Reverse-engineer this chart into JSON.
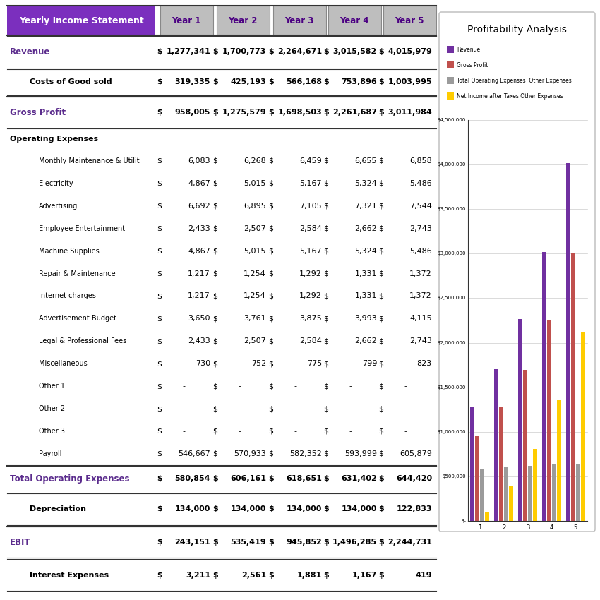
{
  "title_header": "Yearly Income Statement",
  "years": [
    "Year 1",
    "Year 2",
    "Year 3",
    "Year 4",
    "Year 5"
  ],
  "header_bg": "#7B2FBE",
  "header_text_color": "#FFFFFF",
  "year_bg": "#BEBEBE",
  "year_text_color": "#4B0082",
  "rows": [
    {
      "label": "Revenue",
      "style": "blue_bold",
      "values": [
        "1,277,341",
        "1,700,773",
        "2,264,671",
        "3,015,582",
        "4,015,979"
      ],
      "dollar": true,
      "line_above": true,
      "line_below": false
    },
    {
      "label": "Costs of Good sold",
      "style": "normal_bold",
      "values": [
        "319,335",
        "425,193",
        "566,168",
        "753,896",
        "1,003,995"
      ],
      "dollar": true,
      "line_above": true,
      "line_below": true
    },
    {
      "label": "Gross Profit",
      "style": "blue_bold",
      "values": [
        "958,005",
        "1,275,579",
        "1,698,503",
        "2,261,687",
        "3,011,984"
      ],
      "dollar": true,
      "line_above": true,
      "line_below": true
    },
    {
      "label": "Operating Expenses",
      "style": "section_header",
      "values": [
        "",
        "",
        "",
        "",
        ""
      ],
      "dollar": false,
      "line_above": false,
      "line_below": false
    },
    {
      "label": "Monthly Maintenance & Utilit",
      "style": "indent",
      "values": [
        "6,083",
        "6,268",
        "6,459",
        "6,655",
        "6,858"
      ],
      "dollar": true,
      "line_above": false,
      "line_below": false
    },
    {
      "label": "Electricity",
      "style": "indent",
      "values": [
        "4,867",
        "5,015",
        "5,167",
        "5,324",
        "5,486"
      ],
      "dollar": true,
      "line_above": false,
      "line_below": false
    },
    {
      "label": "Advertising",
      "style": "indent",
      "values": [
        "6,692",
        "6,895",
        "7,105",
        "7,321",
        "7,544"
      ],
      "dollar": true,
      "line_above": false,
      "line_below": false
    },
    {
      "label": "Employee Entertainment",
      "style": "indent",
      "values": [
        "2,433",
        "2,507",
        "2,584",
        "2,662",
        "2,743"
      ],
      "dollar": true,
      "line_above": false,
      "line_below": false
    },
    {
      "label": "Machine Supplies",
      "style": "indent",
      "values": [
        "4,867",
        "5,015",
        "5,167",
        "5,324",
        "5,486"
      ],
      "dollar": true,
      "line_above": false,
      "line_below": false
    },
    {
      "label": "Repair & Maintenance",
      "style": "indent",
      "values": [
        "1,217",
        "1,254",
        "1,292",
        "1,331",
        "1,372"
      ],
      "dollar": true,
      "line_above": false,
      "line_below": false
    },
    {
      "label": "Internet charges",
      "style": "indent",
      "values": [
        "1,217",
        "1,254",
        "1,292",
        "1,331",
        "1,372"
      ],
      "dollar": true,
      "line_above": false,
      "line_below": false
    },
    {
      "label": "Advertisement Budget",
      "style": "indent",
      "values": [
        "3,650",
        "3,761",
        "3,875",
        "3,993",
        "4,115"
      ],
      "dollar": true,
      "line_above": false,
      "line_below": false
    },
    {
      "label": "Legal & Professional Fees",
      "style": "indent",
      "values": [
        "2,433",
        "2,507",
        "2,584",
        "2,662",
        "2,743"
      ],
      "dollar": true,
      "line_above": false,
      "line_below": false
    },
    {
      "label": "Miscellaneous",
      "style": "indent",
      "values": [
        "730",
        "752",
        "775",
        "799",
        "823"
      ],
      "dollar": true,
      "line_above": false,
      "line_below": false
    },
    {
      "label": "Other 1",
      "style": "indent",
      "values": [
        "-",
        "-",
        "-",
        "-",
        "-"
      ],
      "dollar": true,
      "line_above": false,
      "line_below": false
    },
    {
      "label": "Other 2",
      "style": "indent",
      "values": [
        "-",
        "-",
        "-",
        "-",
        "-"
      ],
      "dollar": true,
      "line_above": false,
      "line_below": false
    },
    {
      "label": "Other 3",
      "style": "indent",
      "values": [
        "-",
        "-",
        "-",
        "-",
        "-"
      ],
      "dollar": true,
      "line_above": false,
      "line_below": false
    },
    {
      "label": "Payroll",
      "style": "indent",
      "values": [
        "546,667",
        "570,933",
        "582,352",
        "593,999",
        "605,879"
      ],
      "dollar": true,
      "line_above": false,
      "line_below": false
    },
    {
      "label": "Total Operating Expenses",
      "style": "blue_bold",
      "values": [
        "580,854",
        "606,161",
        "618,651",
        "631,402",
        "644,420"
      ],
      "dollar": true,
      "line_above": true,
      "line_below": false
    },
    {
      "label": "Depreciation",
      "style": "normal_bold",
      "values": [
        "134,000",
        "134,000",
        "134,000",
        "134,000",
        "122,833"
      ],
      "dollar": true,
      "line_above": true,
      "line_below": true
    },
    {
      "label": "EBIT",
      "style": "blue_bold",
      "values": [
        "243,151",
        "535,419",
        "945,852",
        "1,496,285",
        "2,244,731"
      ],
      "dollar": true,
      "line_above": true,
      "line_below": true
    },
    {
      "label": "Interest Expenses",
      "style": "normal_bold",
      "values": [
        "3,211",
        "2,561",
        "1,881",
        "1,167",
        "419"
      ],
      "dollar": true,
      "line_above": true,
      "line_below": true
    }
  ],
  "chart": {
    "title": "Profitability Analysis",
    "series": [
      {
        "name": "Revenue",
        "color": "#7030A0",
        "values": [
          1277341,
          1700773,
          2264671,
          3015582,
          4015979
        ]
      },
      {
        "name": "Gross Profit",
        "color": "#C0504D",
        "values": [
          958005,
          1275579,
          1698503,
          2261687,
          3011984
        ]
      },
      {
        "name": "Total Operating Expenses  Other Expenses",
        "color": "#9B9B9B",
        "values": [
          580854,
          606161,
          618651,
          631402,
          644420
        ]
      },
      {
        "name": "Net Income after Taxes Other Expenses",
        "color": "#FFCC00",
        "values": [
          105940,
          398858,
          811971,
          1363118,
          2121479
        ]
      }
    ],
    "yticks": [
      0,
      500000,
      1000000,
      1500000,
      2000000,
      2500000,
      3000000,
      3500000,
      4000000,
      4500000
    ],
    "ylabels": [
      "$-",
      "$500,000",
      "$1,000,000",
      "$1,500,000",
      "$2,000,000",
      "$2,500,000",
      "$3,000,000",
      "$3,500,000",
      "$4,000,000",
      "$4,500,000"
    ]
  }
}
